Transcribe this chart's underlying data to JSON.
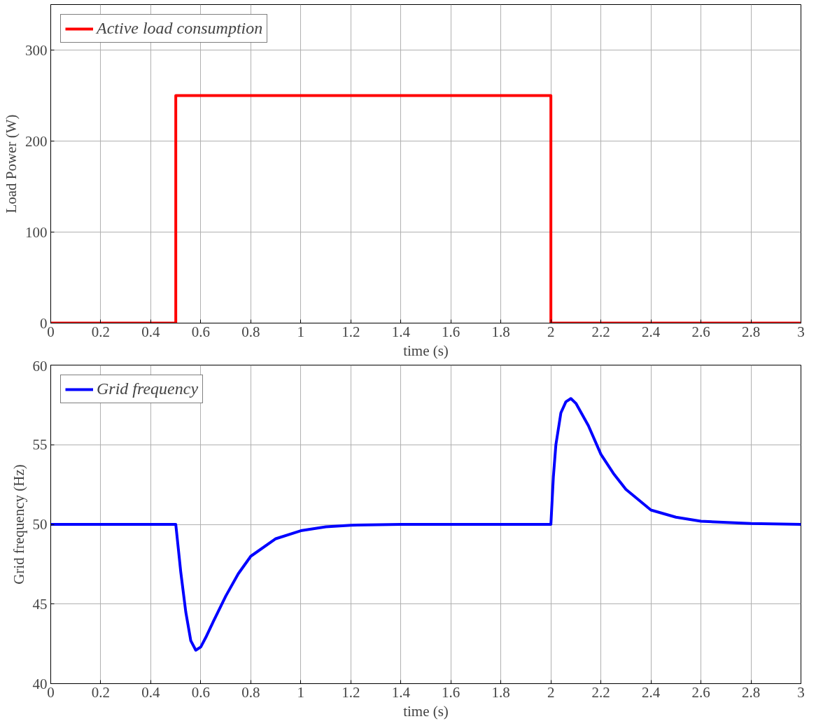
{
  "chart_data": [
    {
      "type": "line",
      "xlabel": "time (s)",
      "ylabel": "Load Power (W)",
      "xlim": [
        0,
        3
      ],
      "ylim": [
        0,
        350
      ],
      "xticks": [
        0,
        0.2,
        0.4,
        0.6,
        0.8,
        1,
        1.2,
        1.4,
        1.6,
        1.8,
        2,
        2.2,
        2.4,
        2.6,
        2.8,
        3
      ],
      "yticks": [
        0,
        100,
        200,
        300
      ],
      "grid": true,
      "legend": "top left",
      "series": [
        {
          "name": "Active load consumption",
          "color": "#ff0000",
          "x": [
            0,
            0.5,
            0.5,
            2,
            2,
            3
          ],
          "values": [
            0,
            0,
            250,
            250,
            0,
            0
          ]
        }
      ]
    },
    {
      "type": "line",
      "xlabel": "time (s)",
      "ylabel": "Grid frequency (Hz)",
      "xlim": [
        0,
        3
      ],
      "ylim": [
        40,
        60
      ],
      "xticks": [
        0,
        0.2,
        0.4,
        0.6,
        0.8,
        1,
        1.2,
        1.4,
        1.6,
        1.8,
        2,
        2.2,
        2.4,
        2.6,
        2.8,
        3
      ],
      "yticks": [
        40,
        45,
        50,
        55,
        60
      ],
      "grid": true,
      "legend": "top left",
      "series": [
        {
          "name": "Grid frequency",
          "color": "#0000ff",
          "x": [
            0,
            0.5,
            0.51,
            0.52,
            0.54,
            0.56,
            0.58,
            0.6,
            0.62,
            0.65,
            0.7,
            0.75,
            0.8,
            0.9,
            1.0,
            1.1,
            1.2,
            1.4,
            2.0,
            2.01,
            2.02,
            2.04,
            2.06,
            2.08,
            2.1,
            2.15,
            2.2,
            2.25,
            2.3,
            2.4,
            2.5,
            2.6,
            2.8,
            3
          ],
          "values": [
            50,
            50,
            48.5,
            47,
            44.5,
            42.7,
            42.1,
            42.3,
            42.9,
            43.9,
            45.5,
            46.9,
            48.0,
            49.1,
            49.6,
            49.85,
            49.95,
            50,
            50,
            53,
            55,
            57,
            57.7,
            57.9,
            57.6,
            56.2,
            54.4,
            53.2,
            52.2,
            50.9,
            50.45,
            50.2,
            50.05,
            50
          ]
        }
      ]
    }
  ]
}
